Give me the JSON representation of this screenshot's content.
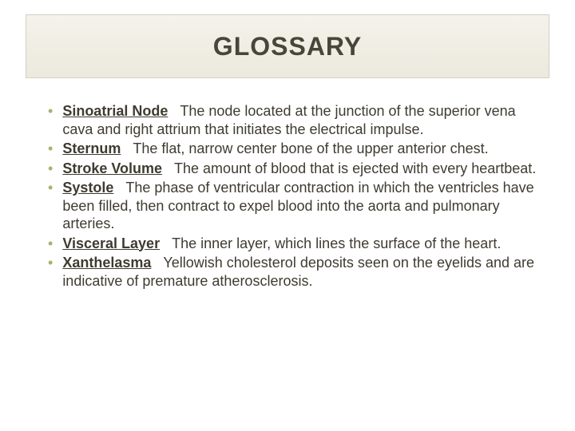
{
  "title": "GLOSSARY",
  "title_color": "#4a4538",
  "title_fontsize": 32,
  "title_box": {
    "border_color": "#d3cfc2",
    "bg_gradient_top": "#f4f2ea",
    "bg_gradient_bottom": "#eceade"
  },
  "bullet_color": "#a6b36c",
  "text_color": "#3f3b31",
  "body_fontsize": 18,
  "background_color": "#ffffff",
  "items": [
    {
      "term": "Sinoatrial Node",
      "definition": "The node located at the junction of the superior vena cava and right attrium that initiates the electrical impulse."
    },
    {
      "term": "Sternum",
      "definition": "The flat, narrow center bone of the upper anterior chest."
    },
    {
      "term": "Stroke Volume",
      "definition": "The amount of blood that is ejected with every heartbeat."
    },
    {
      "term": "Systole",
      "definition": "The phase of ventricular contraction in which the ventricles have been filled, then contract to expel blood into the aorta and pulmonary arteries."
    },
    {
      "term": "Visceral Layer",
      "definition": "The inner layer, which lines the surface of the heart."
    },
    {
      "term": "Xanthelasma",
      "definition": "Yellowish cholesterol deposits seen on the eyelids and are indicative of premature atherosclerosis."
    }
  ]
}
